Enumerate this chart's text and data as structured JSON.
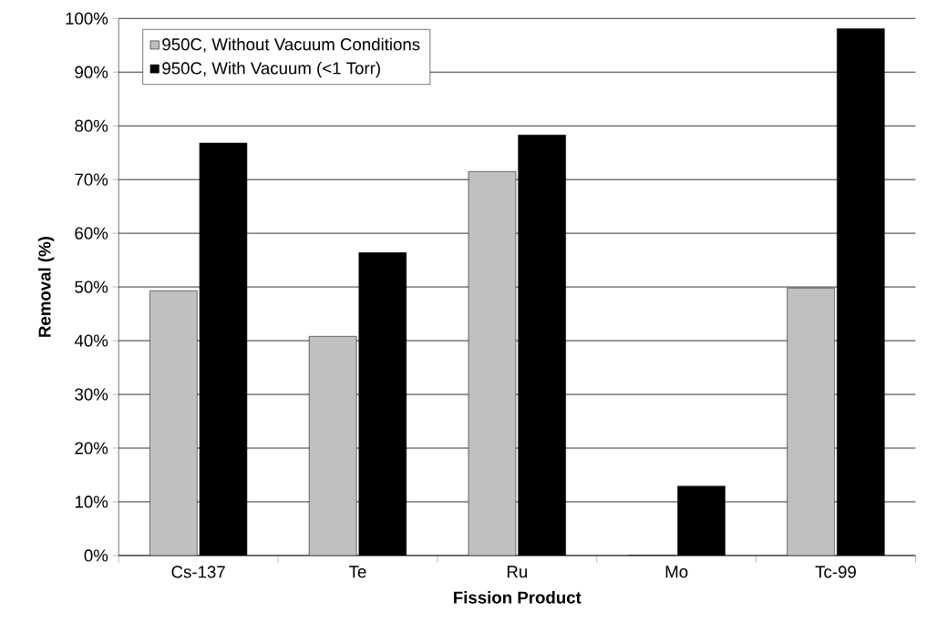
{
  "chart_data": {
    "type": "bar",
    "xlabel": "Fission Product",
    "ylabel": "Removal (%)",
    "categories": [
      "Cs-137",
      "Te",
      "Ru",
      "Mo",
      "Tc-99"
    ],
    "series": [
      {
        "name": "950C, Without Vacuum Conditions",
        "color": "#c0c0c0",
        "values": [
          49.3,
          40.8,
          71.5,
          0,
          49.8
        ]
      },
      {
        "name": "950C, With Vacuum (<1 Torr)",
        "color": "#000000",
        "values": [
          76.8,
          56.4,
          78.3,
          12.9,
          98.1
        ]
      }
    ],
    "ylim": [
      0,
      100
    ],
    "yticks": [
      {
        "value": 0,
        "label": "0%"
      },
      {
        "value": 10,
        "label": "10%"
      },
      {
        "value": 20,
        "label": "20%"
      },
      {
        "value": 30,
        "label": "30%"
      },
      {
        "value": 40,
        "label": "40%"
      },
      {
        "value": 50,
        "label": "50%"
      },
      {
        "value": 60,
        "label": "60%"
      },
      {
        "value": 70,
        "label": "70%"
      },
      {
        "value": 80,
        "label": "80%"
      },
      {
        "value": 90,
        "label": "90%"
      },
      {
        "value": 100,
        "label": "100%"
      }
    ],
    "grid": "y",
    "legend": "top left"
  }
}
